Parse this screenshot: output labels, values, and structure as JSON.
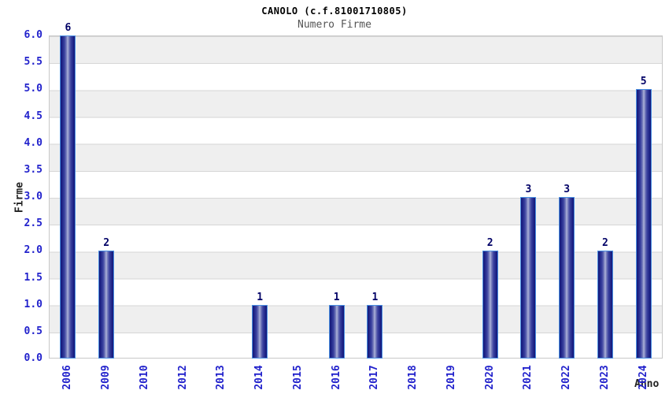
{
  "chart_data": {
    "type": "bar",
    "title": "CANOLO (c.f.81001710805)",
    "subtitle": "Numero Firme",
    "xlabel": "Anno",
    "ylabel": "Firme",
    "categories": [
      "2006",
      "2009",
      "2010",
      "2012",
      "2013",
      "2014",
      "2015",
      "2016",
      "2017",
      "2018",
      "2019",
      "2020",
      "2021",
      "2022",
      "2023",
      "2024"
    ],
    "values": [
      6,
      2,
      0,
      0,
      0,
      1,
      0,
      1,
      1,
      0,
      0,
      2,
      3,
      3,
      2,
      5
    ],
    "ylim": [
      0,
      6
    ],
    "ytick_step": 0.5,
    "ytick_decimals": 1,
    "grid": "horizontal",
    "legend": "none",
    "background_bands": "alternating gray/white per 0.5 unit, gray at top",
    "value_labels": "shown above non-zero bars",
    "x_tick_rotation_deg": 90,
    "colors": {
      "bar_dark": "#131878",
      "bar_center_highlight": "#b2b7db",
      "bar_border": "#4a90e2",
      "tick_label": "#2222cc",
      "value_label": "#000066",
      "title": "#000000",
      "subtitle": "#555555",
      "band_gray": "#efefef",
      "band_white": "#ffffff",
      "grid_line": "#d6d6d6",
      "plot_border": "#c8c8c8"
    }
  }
}
